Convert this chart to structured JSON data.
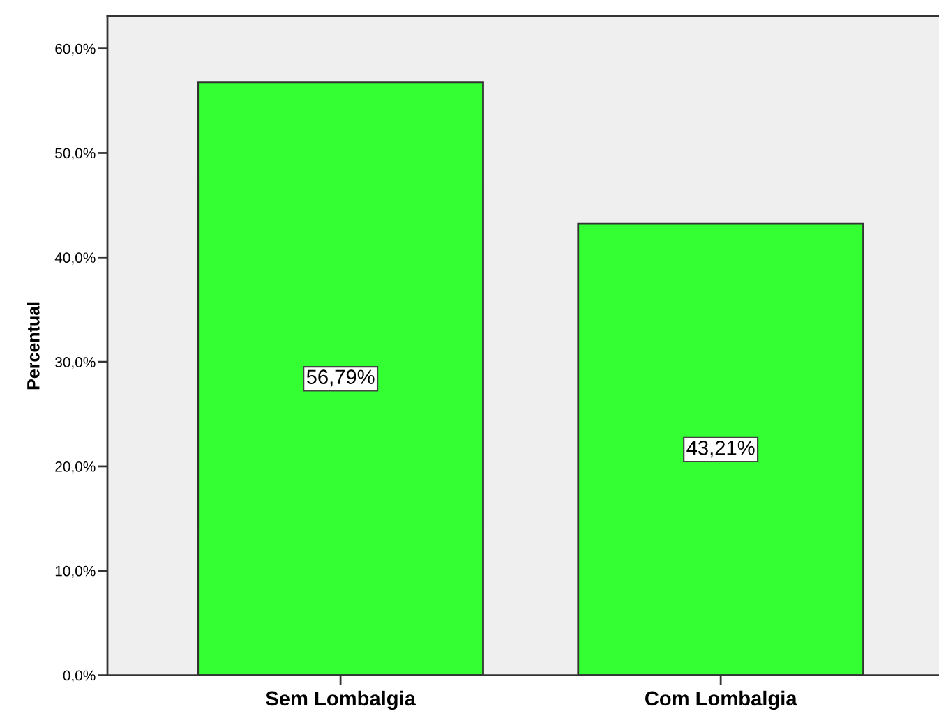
{
  "chart_data": {
    "type": "bar",
    "ylabel": "Percentual",
    "categories": [
      "Sem Lombalgia",
      "Com Lombalgia"
    ],
    "values": [
      56.79,
      43.21
    ],
    "color": "#33ff33",
    "value_labels": [
      "56,79%",
      "43,21%"
    ],
    "ylim": [
      0,
      63.1
    ],
    "yticks": [
      {
        "value": 0,
        "label": "0,0%"
      },
      {
        "value": 10,
        "label": "10,0%"
      },
      {
        "value": 20,
        "label": "20,0%"
      },
      {
        "value": 30,
        "label": "30,0%"
      },
      {
        "value": 40,
        "label": "40,0%"
      },
      {
        "value": 50,
        "label": "50,0%"
      },
      {
        "value": 60,
        "label": "60,0%"
      }
    ]
  }
}
